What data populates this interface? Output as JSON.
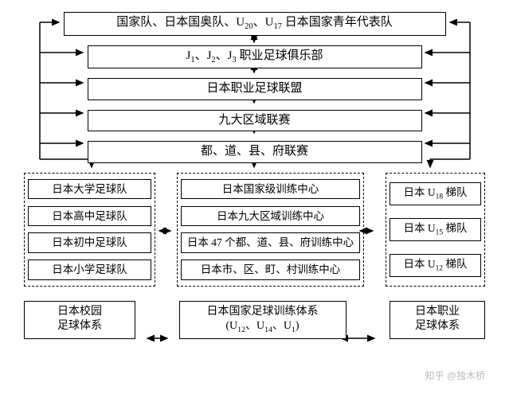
{
  "diagram": {
    "type": "flowchart",
    "background_color": "#ffffff",
    "border_color": "#000000",
    "font_family": "SimSun",
    "top_levels": [
      {
        "html": "国家队、日本国奥队、U<sub>20</sub>、U<sub>17</sub> 日本国家青年代表队"
      },
      {
        "html": "J<sub>1</sub>、J<sub>2</sub>、J<sub>3</sub> 职业足球俱乐部"
      },
      {
        "html": "日本职业足球联盟"
      },
      {
        "html": "九大区域联赛"
      },
      {
        "html": "都、道、县、府联赛"
      }
    ],
    "columns": {
      "left": {
        "items": [
          "日本大学足球队",
          "日本高中足球队",
          "日本初中足球队",
          "日本小学足球队"
        ],
        "label_html": "日本校园<br>足球体系"
      },
      "center": {
        "items": [
          "日本国家级训练中心",
          "日本九大区域训练中心",
          "日本 47 个都、道、县、府训练中心",
          "日本市、区、町、村训练中心"
        ],
        "label_html": "日本国家足球训练体系<br>(U<sub>12</sub>、U<sub>14</sub>、U<sub>1</sub>)"
      },
      "right": {
        "items_html": [
          "日本 U<sub>18</sub> 梯队",
          "日本 U<sub>15</sub> 梯队",
          "日本 U<sub>12</sub> 梯队"
        ],
        "label_html": "日本职业<br>足球体系"
      }
    },
    "watermark": "知乎 @独木桥"
  }
}
